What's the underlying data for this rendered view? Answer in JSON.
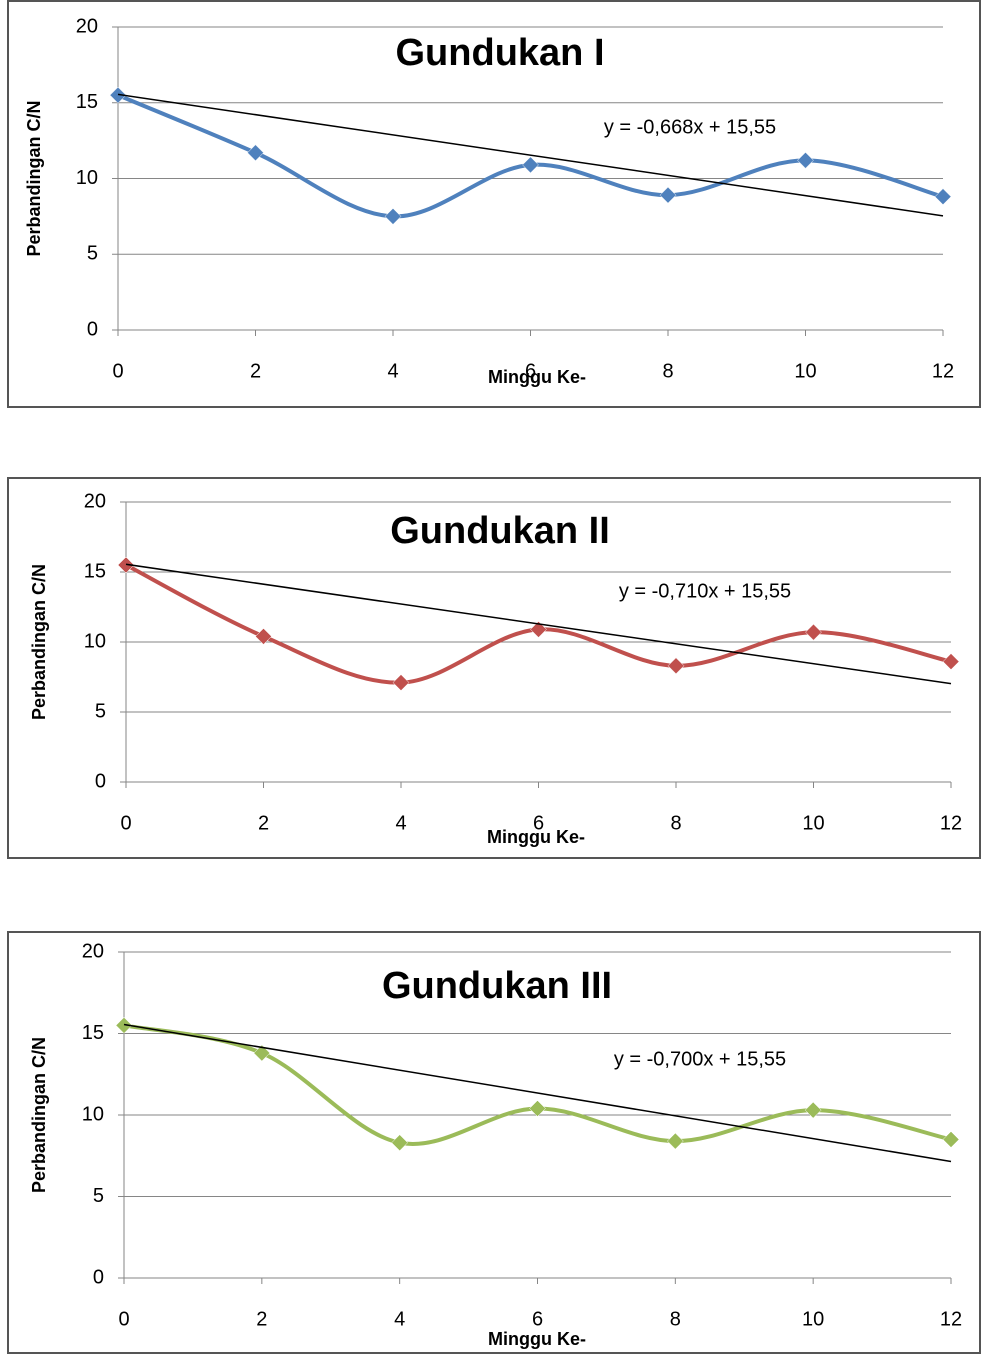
{
  "chart_data": [
    {
      "type": "line",
      "title": "Gundukan I",
      "x_label": "Minggu Ke-",
      "y_label": "Perbandingan C/N",
      "x": [
        0,
        2,
        4,
        6,
        8,
        10,
        12
      ],
      "series": [
        {
          "name": "Gundukan I",
          "color": "#4f81bd",
          "values": [
            15.5,
            11.7,
            7.5,
            10.9,
            8.9,
            11.2,
            8.8
          ]
        }
      ],
      "trendline": {
        "slope": -0.668,
        "intercept": 15.55,
        "label": "y = -0,668x + 15,55"
      },
      "xlim": [
        0,
        12
      ],
      "xticks": [
        0,
        2,
        4,
        6,
        8,
        10,
        12
      ],
      "ylim": [
        0,
        20
      ],
      "yticks": [
        0,
        5,
        10,
        15,
        20
      ],
      "grid": true
    },
    {
      "type": "line",
      "title": "Gundukan II",
      "x_label": "Minggu Ke-",
      "y_label": "Perbandingan C/N",
      "x": [
        0,
        2,
        4,
        6,
        8,
        10,
        12
      ],
      "series": [
        {
          "name": "Gundukan II",
          "color": "#c0504d",
          "values": [
            15.5,
            10.4,
            7.1,
            10.9,
            8.3,
            10.7,
            8.6
          ]
        }
      ],
      "trendline": {
        "slope": -0.71,
        "intercept": 15.55,
        "label": "y = -0,710x + 15,55"
      },
      "xlim": [
        0,
        12
      ],
      "xticks": [
        0,
        2,
        4,
        6,
        8,
        10,
        12
      ],
      "ylim": [
        0,
        20
      ],
      "yticks": [
        0,
        5,
        10,
        15,
        20
      ],
      "grid": true
    },
    {
      "type": "line",
      "title": "Gundukan III",
      "x_label": "Minggu Ke-",
      "y_label": "Perbandingan C/N",
      "x": [
        0,
        2,
        4,
        6,
        8,
        10,
        12
      ],
      "series": [
        {
          "name": "Gundukan III",
          "color": "#9bbb59",
          "values": [
            15.5,
            13.8,
            8.3,
            10.4,
            8.4,
            10.3,
            8.5
          ]
        }
      ],
      "trendline": {
        "slope": -0.7,
        "intercept": 15.55,
        "label": "y = -0,700x + 15,55"
      },
      "xlim": [
        0,
        12
      ],
      "xticks": [
        0,
        2,
        4,
        6,
        8,
        10,
        12
      ],
      "ylim": [
        0,
        20
      ],
      "yticks": [
        0,
        5,
        10,
        15,
        20
      ],
      "grid": true
    }
  ]
}
